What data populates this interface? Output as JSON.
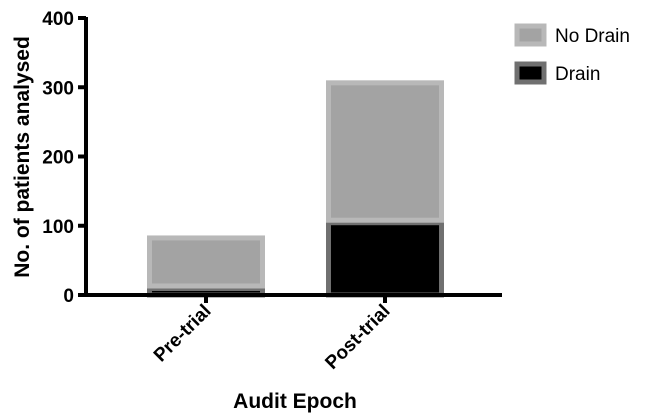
{
  "chart_data": {
    "type": "bar",
    "stacked": true,
    "categories": [
      "Pre-trial",
      "Post-trial"
    ],
    "series": [
      {
        "name": "Drain",
        "values": [
          13,
          108
        ],
        "color": "#000000",
        "border": "#707070"
      },
      {
        "name": "No Drain",
        "values": [
          73,
          202
        ],
        "color": "#a3a3a3",
        "border": "#b8b8b8"
      }
    ],
    "xlabel": "Audit Epoch",
    "ylabel": "No. of patients analysed",
    "ylim": [
      0,
      400
    ],
    "yticks": [
      0,
      100,
      200,
      300,
      400
    ],
    "grid": false,
    "legend": {
      "placement": "top-right",
      "order": [
        "No Drain",
        "Drain"
      ]
    }
  }
}
